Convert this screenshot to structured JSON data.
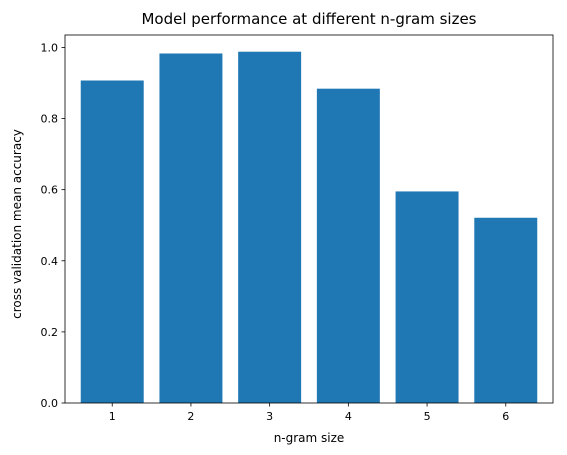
{
  "chart_data": {
    "type": "bar",
    "title": "Model performance at different n-gram sizes",
    "xlabel": "n-gram size",
    "ylabel": "cross validation mean accuracy",
    "categories": [
      "1",
      "2",
      "3",
      "4",
      "5",
      "6"
    ],
    "values": [
      0.907,
      0.983,
      0.988,
      0.884,
      0.595,
      0.521
    ],
    "ylim": [
      0,
      1.035
    ],
    "yticks": [
      "0.0",
      "0.2",
      "0.4",
      "0.6",
      "0.8",
      "1.0"
    ],
    "grid": false,
    "legend": "none",
    "bar_color": "#1f77b4"
  }
}
